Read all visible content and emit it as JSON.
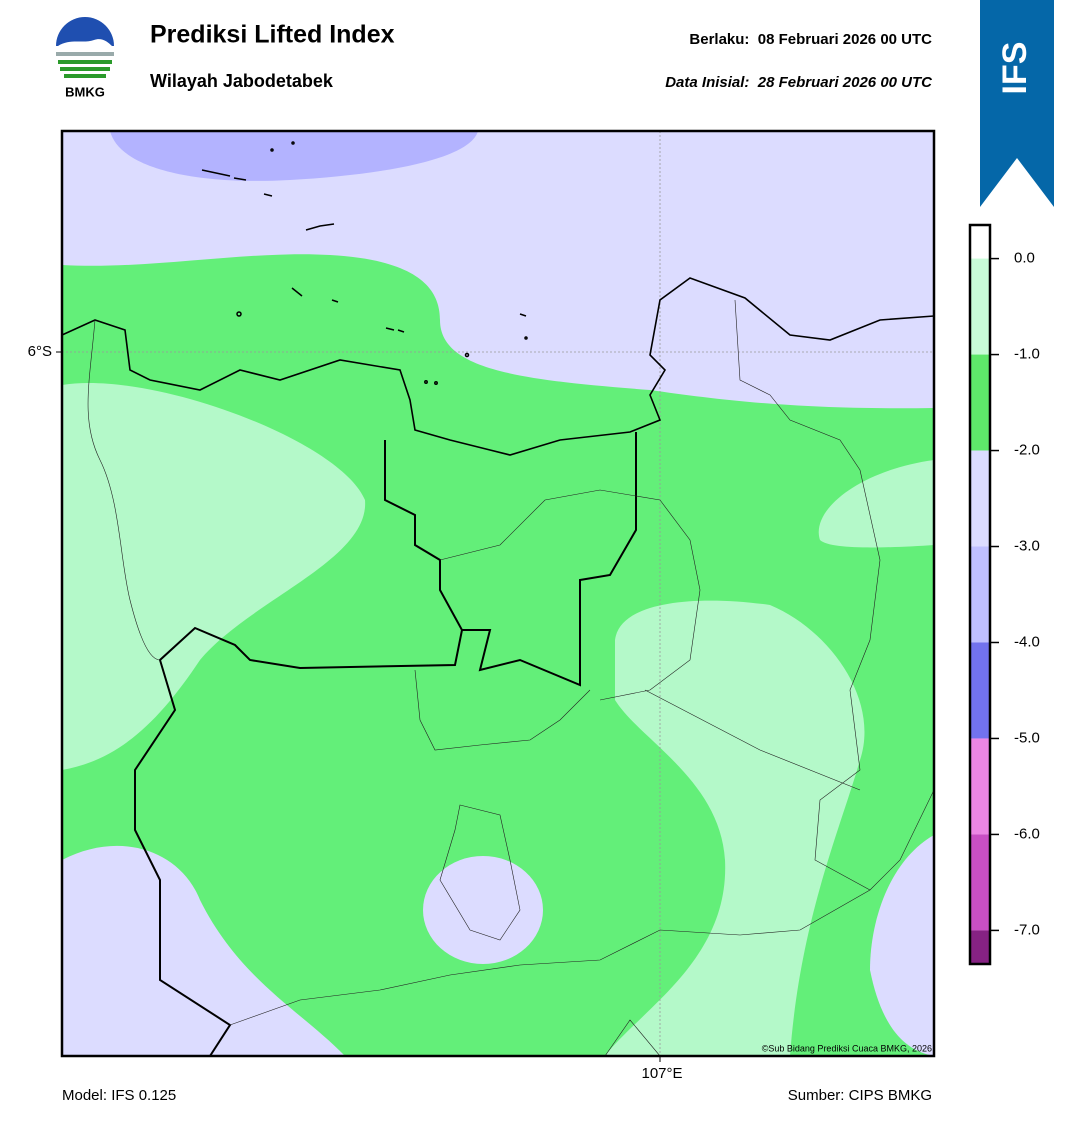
{
  "header": {
    "logo_text": "BMKG",
    "title": "Prediksi Lifted Index",
    "subtitle": "Wilayah Jabodetabek",
    "valid": "Berlaku:  08 Februari 2026 00 UTC",
    "init": "Data Inisial:  28 Februari 2026 00 UTC",
    "badge": "IFS"
  },
  "map": {
    "lat_label": "6°S",
    "lon_label": "107°E",
    "credit": "©Sub Bidang Prediksi Cuaca BMKG, 2026"
  },
  "colorbar": {
    "lim": [
      -7.35,
      0.35
    ],
    "bounds": [
      0.35,
      0,
      -1,
      -2,
      -3,
      -4,
      -5,
      -6,
      -7,
      -7.35
    ],
    "colors": [
      "#ffffff",
      "#c8fcd8",
      "#5ee86a",
      "#dcdcff",
      "#bfbfff",
      "#7272ee",
      "#ec86e4",
      "#c94fc4",
      "#862283"
    ],
    "ticks": [
      {
        "value": 0,
        "label": "0.0"
      },
      {
        "value": -1,
        "label": "-1.0"
      },
      {
        "value": -2,
        "label": "-2.0"
      },
      {
        "value": -3,
        "label": "-3.0"
      },
      {
        "value": -4,
        "label": "-4.0"
      },
      {
        "value": -5,
        "label": "-5.0"
      },
      {
        "value": -6,
        "label": "-6.0"
      },
      {
        "value": -7,
        "label": "-7.0"
      }
    ]
  },
  "footer": {
    "model": "Model: IFS 0.125",
    "source": "Sumber: CIPS BMKG"
  }
}
